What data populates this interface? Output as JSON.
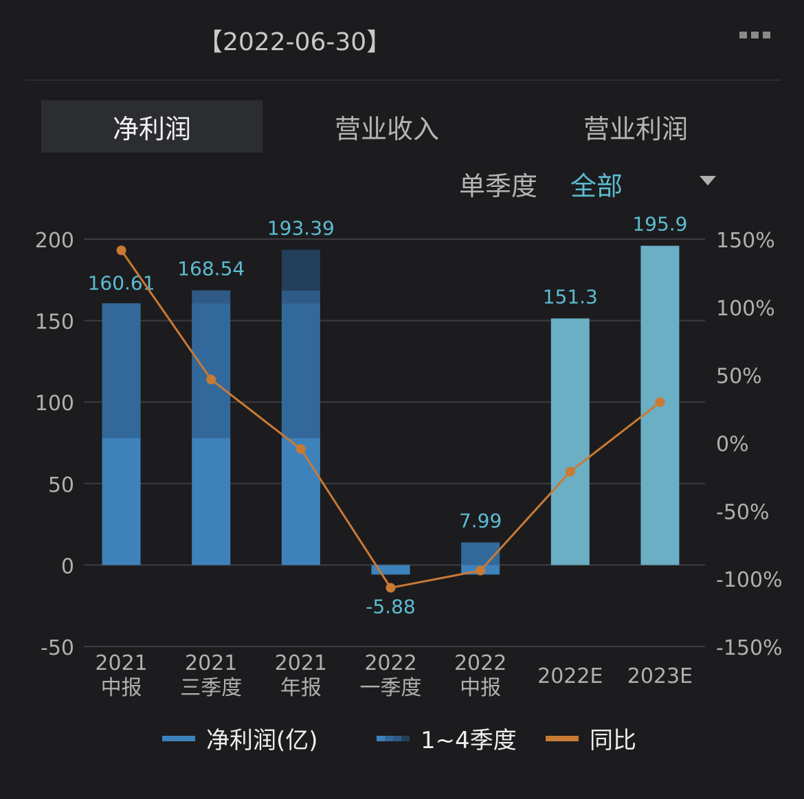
{
  "header": {
    "date": "【2022-06-30】",
    "more_icon": "more-icon"
  },
  "tabs": [
    {
      "label": "净利润",
      "active": true
    },
    {
      "label": "营业收入",
      "active": false
    },
    {
      "label": "营业利润",
      "active": false
    }
  ],
  "filter": {
    "label": "单季度",
    "value": "全部"
  },
  "colors": {
    "q1": "#3e82bc",
    "q2": "#33699a",
    "q3": "#2e5a85",
    "q4": "#243f5a",
    "estimate": "#6aafc4",
    "yoy": "#c97a35",
    "label": "#5cbcd2"
  },
  "chart_data": {
    "type": "bar",
    "categories": [
      [
        "2021",
        "中报"
      ],
      [
        "2021",
        "三季度"
      ],
      [
        "2021",
        "年报"
      ],
      [
        "2022",
        "一季度"
      ],
      [
        "2022",
        "中报"
      ],
      [
        "2022E",
        ""
      ],
      [
        "2023E",
        ""
      ]
    ],
    "totals": [
      160.61,
      168.54,
      193.39,
      -5.88,
      7.99,
      151.3,
      195.9
    ],
    "total_labels": [
      "160.61",
      "168.54",
      "193.39",
      "-5.88",
      "7.99",
      "151.3",
      "195.9"
    ],
    "quarters": [
      [
        78,
        82.61
      ],
      [
        78,
        82.61,
        7.93
      ],
      [
        78,
        82.61,
        7.93,
        24.85
      ],
      [
        -5.88
      ],
      [
        -5.88,
        13.87
      ],
      null,
      null
    ],
    "estimates": [
      false,
      false,
      false,
      false,
      false,
      true,
      true
    ],
    "yoy_percent": [
      141.7,
      46.6,
      -4.6,
      -106.8,
      -94.1,
      -21.3,
      29.9
    ],
    "y_left": {
      "range": [
        -50,
        200
      ],
      "ticks": [
        "200",
        "150",
        "100",
        "50",
        "0",
        "-50"
      ]
    },
    "y_right": {
      "range": [
        -150,
        150
      ],
      "ticks": [
        "150%",
        "100%",
        "50%",
        "0%",
        "-50%",
        "-100%",
        "-150%"
      ]
    },
    "grid": true,
    "legend": [
      {
        "name": "净利润(亿)"
      },
      {
        "name": "1~4季度"
      },
      {
        "name": "同比"
      }
    ],
    "legend_position": "bottom"
  }
}
